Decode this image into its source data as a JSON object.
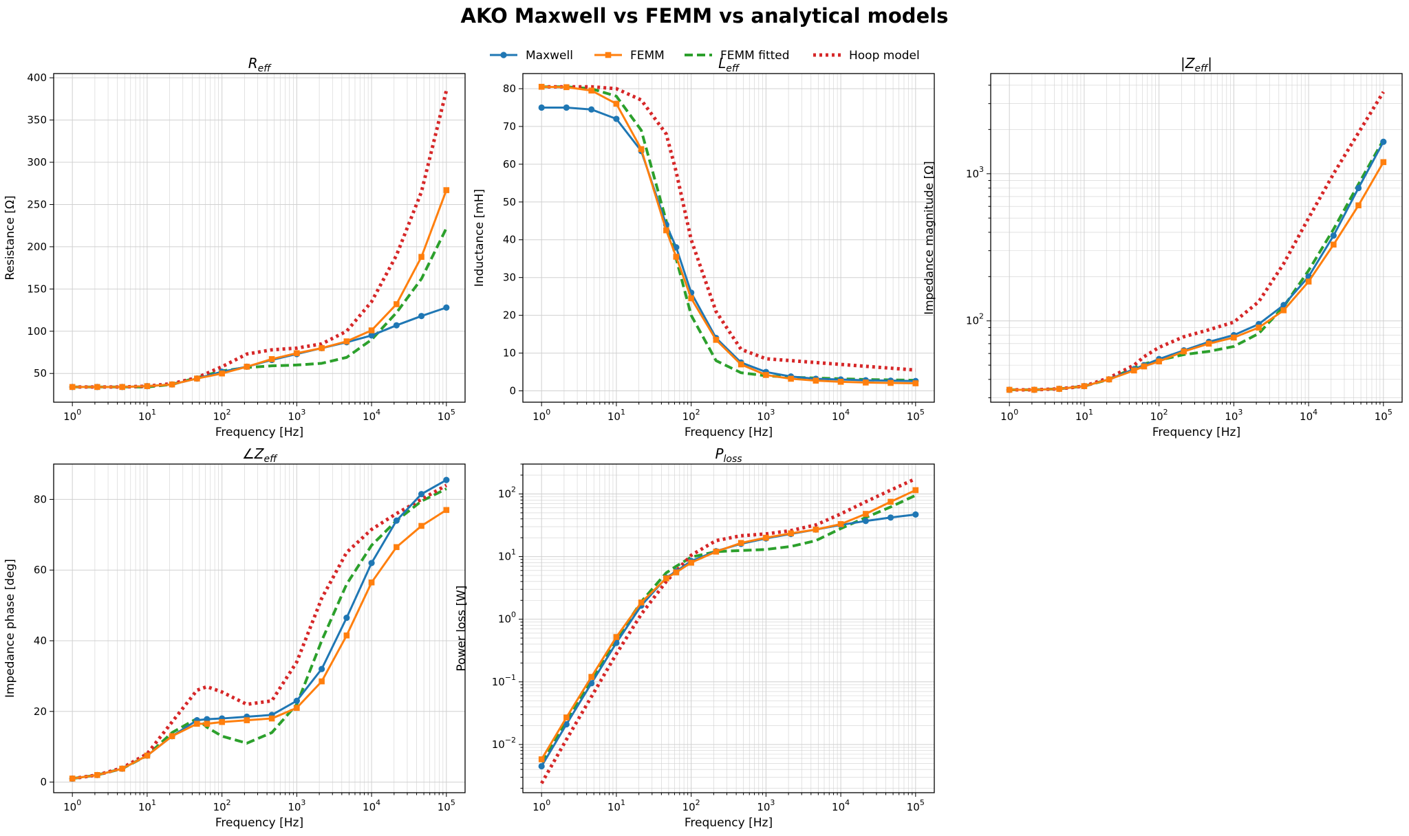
{
  "figure": {
    "title": "AKO Maxwell vs FEMM vs analytical models"
  },
  "colors": {
    "maxwell": "#1f77b4",
    "femm": "#ff7f0e",
    "femm_fitted": "#2ca02c",
    "hoop": "#d62728"
  },
  "legend": {
    "placement": "top-center",
    "entries": [
      {
        "label": "Maxwell",
        "series": "maxwell",
        "style": "solid-circle"
      },
      {
        "label": "FEMM",
        "series": "femm",
        "style": "solid-square"
      },
      {
        "label": "FEMM fitted",
        "series": "femm_fitted",
        "style": "dashed"
      },
      {
        "label": "Hoop model",
        "series": "hoop",
        "style": "dotted"
      }
    ]
  },
  "chart_data": [
    {
      "id": "r",
      "type": "line",
      "title": "R_eff",
      "title_main": "R",
      "title_sub": "eff",
      "xlabel": "Frequency [Hz]",
      "ylabel": "Resistance [Ω]",
      "xscale": "log",
      "yscale": "linear",
      "xlim": [
        1,
        100000
      ],
      "ylim": [
        16,
        405
      ],
      "yticks": [
        50,
        100,
        150,
        200,
        250,
        300,
        350,
        400
      ],
      "ytick_labels": [
        "50",
        "100",
        "150",
        "200",
        "250",
        "300",
        "350",
        "400"
      ],
      "grid": true,
      "series": [
        {
          "name": "Maxwell",
          "key": "maxwell",
          "x": [
            1,
            2.15,
            4.64,
            10,
            21.5,
            46.4,
            100,
            215,
            464,
            1000,
            2154,
            4642,
            10000,
            21544,
            46416,
            100000
          ],
          "y": [
            34,
            34,
            34,
            35,
            37,
            44,
            52,
            58,
            66,
            73,
            80,
            87,
            95,
            107,
            118,
            128
          ]
        },
        {
          "name": "FEMM",
          "key": "femm",
          "x": [
            1,
            2.15,
            4.64,
            10,
            21.5,
            46.4,
            100,
            215,
            464,
            1000,
            2154,
            4642,
            10000,
            21544,
            46416,
            100000
          ],
          "y": [
            34,
            34,
            34,
            35,
            37,
            44,
            50,
            58,
            67,
            74,
            80,
            88,
            101,
            132,
            188,
            267
          ]
        },
        {
          "name": "FEMM fitted",
          "key": "femm_fitted",
          "x": [
            1,
            2.15,
            4.64,
            10,
            21.5,
            46.4,
            100,
            215,
            464,
            1000,
            2154,
            4642,
            10000,
            21544,
            46416,
            100000
          ],
          "y": [
            34,
            34,
            34,
            34,
            37,
            45,
            53,
            57,
            59,
            60,
            62,
            69,
            90,
            122,
            162,
            222
          ]
        },
        {
          "name": "Hoop model",
          "key": "hoop",
          "x": [
            1,
            2.15,
            4.64,
            10,
            21.5,
            46.4,
            100,
            215,
            464,
            1000,
            2154,
            4642,
            10000,
            21544,
            46416,
            100000
          ],
          "y": [
            34,
            34,
            34,
            35,
            38,
            45,
            58,
            73,
            78,
            80,
            85,
            100,
            135,
            190,
            265,
            385
          ]
        }
      ]
    },
    {
      "id": "l",
      "type": "line",
      "title": "L_eff",
      "title_main": "L",
      "title_sub": "eff",
      "xlabel": "Frequency [Hz]",
      "ylabel": "Inductance [mH]",
      "xscale": "log",
      "yscale": "linear",
      "xlim": [
        1,
        100000
      ],
      "ylim": [
        -3,
        84
      ],
      "yticks": [
        0,
        10,
        20,
        30,
        40,
        50,
        60,
        70,
        80
      ],
      "ytick_labels": [
        "0",
        "10",
        "20",
        "30",
        "40",
        "50",
        "60",
        "70",
        "80"
      ],
      "grid": true,
      "series": [
        {
          "name": "Maxwell",
          "key": "maxwell",
          "x": [
            1,
            2.15,
            4.64,
            10,
            21.5,
            46.4,
            63,
            100,
            215,
            464,
            1000,
            2154,
            4642,
            10000,
            21544,
            46416,
            100000
          ],
          "y": [
            75,
            75,
            74.5,
            72,
            63.5,
            44,
            38,
            26,
            14,
            7.5,
            5,
            3.8,
            3.2,
            3,
            2.8,
            2.7,
            2.6
          ]
        },
        {
          "name": "FEMM",
          "key": "femm",
          "x": [
            1,
            2.15,
            4.64,
            10,
            21.5,
            46.4,
            63,
            100,
            215,
            464,
            1000,
            2154,
            4642,
            10000,
            21544,
            46416,
            100000
          ],
          "y": [
            80.5,
            80.4,
            79.5,
            76,
            64,
            42.5,
            35.5,
            24.5,
            13.5,
            7,
            4.2,
            3.2,
            2.7,
            2.4,
            2.2,
            2.1,
            2.0
          ]
        },
        {
          "name": "FEMM fitted",
          "key": "femm_fitted",
          "x": [
            1,
            2.15,
            4.64,
            10,
            21.5,
            46.4,
            63,
            100,
            215,
            464,
            1000,
            2154,
            4642,
            10000,
            21544,
            46416,
            100000
          ],
          "y": [
            80.5,
            80.5,
            80,
            78,
            69,
            45,
            35,
            20,
            8,
            4.8,
            4,
            3.6,
            3.4,
            3.2,
            3,
            2.9,
            2.8
          ]
        },
        {
          "name": "Hoop model",
          "key": "hoop",
          "x": [
            1,
            2.15,
            4.64,
            10,
            21.5,
            46.4,
            63,
            100,
            215,
            464,
            1000,
            2154,
            4642,
            10000,
            21544,
            46416,
            100000
          ],
          "y": [
            80.5,
            80.5,
            80.5,
            80,
            77,
            68,
            58,
            40,
            21,
            11,
            8.5,
            8,
            7.5,
            7,
            6.5,
            6,
            5.5
          ]
        }
      ]
    },
    {
      "id": "z",
      "type": "line",
      "title": "|Z_eff|",
      "title_main": "|Z",
      "title_sub": "eff",
      "title_after": "|",
      "xlabel": "Frequency [Hz]",
      "ylabel": "Impedance magnitude [Ω]",
      "xscale": "log",
      "yscale": "log",
      "xlim": [
        1,
        100000
      ],
      "ylim": [
        28,
        4800
      ],
      "yticks": [
        100,
        1000
      ],
      "ytick_labels": [
        "10^2",
        "10^3"
      ],
      "grid": true,
      "series": [
        {
          "name": "Maxwell",
          "key": "maxwell",
          "x": [
            1,
            2.15,
            4.64,
            10,
            21.5,
            46.4,
            63,
            100,
            215,
            464,
            1000,
            2154,
            4642,
            10000,
            21544,
            46416,
            100000
          ],
          "y": [
            34,
            34,
            34.5,
            36,
            40,
            47,
            50,
            55,
            63,
            72,
            80,
            95,
            128,
            200,
            380,
            800,
            1650
          ]
        },
        {
          "name": "FEMM",
          "key": "femm",
          "x": [
            1,
            2.15,
            4.64,
            10,
            21.5,
            46.4,
            63,
            100,
            215,
            464,
            1000,
            2154,
            4642,
            10000,
            21544,
            46416,
            100000
          ],
          "y": [
            34,
            34,
            34.5,
            36,
            40,
            46,
            49,
            53,
            62,
            70,
            77,
            90,
            118,
            185,
            330,
            610,
            1200
          ]
        },
        {
          "name": "FEMM fitted",
          "key": "femm_fitted",
          "x": [
            1,
            2.15,
            4.64,
            10,
            21.5,
            46.4,
            63,
            100,
            215,
            464,
            1000,
            2154,
            4642,
            10000,
            21544,
            46416,
            100000
          ],
          "y": [
            34,
            34,
            34.5,
            36,
            40,
            48,
            51,
            54,
            59,
            62,
            67,
            82,
            125,
            220,
            420,
            850,
            1700
          ]
        },
        {
          "name": "Hoop model",
          "key": "hoop",
          "x": [
            1,
            2.15,
            4.64,
            10,
            21.5,
            46.4,
            63,
            100,
            215,
            464,
            1000,
            2154,
            4642,
            10000,
            21544,
            46416,
            100000
          ],
          "y": [
            34,
            34,
            34.5,
            36,
            41,
            50,
            57,
            66,
            78,
            87,
            98,
            135,
            245,
            500,
            1000,
            1900,
            3600
          ]
        }
      ]
    },
    {
      "id": "phase",
      "type": "line",
      "title": "∠Z_eff",
      "title_main": "∠Z",
      "title_sub": "eff",
      "xlabel": "Frequency [Hz]",
      "ylabel": "Impedance phase [deg]",
      "xscale": "log",
      "yscale": "linear",
      "xlim": [
        1,
        100000
      ],
      "ylim": [
        -3,
        90
      ],
      "yticks": [
        0,
        20,
        40,
        60,
        80
      ],
      "ytick_labels": [
        "0",
        "20",
        "40",
        "60",
        "80"
      ],
      "grid": true,
      "series": [
        {
          "name": "Maxwell",
          "key": "maxwell",
          "x": [
            1,
            2.15,
            4.64,
            10,
            21.5,
            46.4,
            63,
            100,
            215,
            464,
            1000,
            2154,
            4642,
            10000,
            21544,
            46416,
            100000
          ],
          "y": [
            1,
            2,
            3.8,
            7.5,
            13,
            17.5,
            17.8,
            18,
            18.5,
            19,
            23,
            32,
            46.5,
            62,
            74,
            81.5,
            85.5
          ]
        },
        {
          "name": "FEMM",
          "key": "femm",
          "x": [
            1,
            2.15,
            4.64,
            10,
            21.5,
            46.4,
            63,
            100,
            215,
            464,
            1000,
            2154,
            4642,
            10000,
            21544,
            46416,
            100000
          ],
          "y": [
            1,
            2,
            3.8,
            7.5,
            13,
            16.5,
            16.5,
            17,
            17.5,
            18,
            21,
            28.5,
            41.5,
            56.5,
            66.5,
            72.5,
            77
          ]
        },
        {
          "name": "FEMM fitted",
          "key": "femm_fitted",
          "x": [
            1,
            2.15,
            4.64,
            10,
            21.5,
            46.4,
            63,
            100,
            215,
            464,
            1000,
            2154,
            4642,
            10000,
            21544,
            46416,
            100000
          ],
          "y": [
            1,
            2,
            3.8,
            7.5,
            14,
            18,
            15.5,
            13,
            11,
            14,
            22,
            40,
            56,
            67,
            74,
            79.5,
            83
          ]
        },
        {
          "name": "Hoop model",
          "key": "hoop",
          "x": [
            1,
            2.15,
            4.64,
            10,
            21.5,
            46.4,
            63,
            100,
            215,
            464,
            1000,
            2154,
            4642,
            10000,
            21544,
            46416,
            100000
          ],
          "y": [
            1,
            2,
            4,
            8,
            17,
            26,
            27,
            25.5,
            22,
            23,
            34,
            52,
            65,
            71.5,
            76,
            80,
            84
          ]
        }
      ]
    },
    {
      "id": "ploss",
      "type": "line",
      "title": "P_loss",
      "title_main": "P",
      "title_sub": "loss",
      "xlabel": "Frequency [Hz]",
      "ylabel": "Power loss [W]",
      "xscale": "log",
      "yscale": "log",
      "xlim": [
        1,
        100000
      ],
      "ylim": [
        0.0017,
        300
      ],
      "yticks": [
        0.01,
        0.1,
        1,
        10,
        100
      ],
      "ytick_labels": [
        "10^-2",
        "10^-1",
        "10^0",
        "10^1",
        "10^2"
      ],
      "grid": true,
      "series": [
        {
          "name": "Maxwell",
          "key": "maxwell",
          "x": [
            1,
            2.15,
            4.64,
            10,
            21.5,
            46.4,
            63,
            100,
            215,
            464,
            1000,
            2154,
            4642,
            10000,
            21544,
            46416,
            100000
          ],
          "y": [
            0.0045,
            0.021,
            0.095,
            0.42,
            1.65,
            4.6,
            5.8,
            8.5,
            12.2,
            16,
            19.5,
            23,
            27,
            32,
            37,
            42,
            47
          ]
        },
        {
          "name": "FEMM",
          "key": "femm",
          "x": [
            1,
            2.15,
            4.64,
            10,
            21.5,
            46.4,
            63,
            100,
            215,
            464,
            1000,
            2154,
            4642,
            10000,
            21544,
            46416,
            100000
          ],
          "y": [
            0.0058,
            0.027,
            0.12,
            0.52,
            1.85,
            4.5,
            5.6,
            8,
            12,
            16.5,
            20,
            23.5,
            27,
            33,
            48,
            75,
            115
          ]
        },
        {
          "name": "FEMM fitted",
          "key": "femm_fitted",
          "x": [
            1,
            2.15,
            4.64,
            10,
            21.5,
            46.4,
            63,
            100,
            215,
            464,
            1000,
            2154,
            4642,
            10000,
            21544,
            46416,
            100000
          ],
          "y": [
            0.0052,
            0.024,
            0.11,
            0.48,
            1.9,
            5.5,
            7,
            9.8,
            12,
            12.5,
            13,
            14.5,
            18,
            28,
            42,
            62,
            95
          ]
        },
        {
          "name": "Hoop model",
          "key": "hoop",
          "x": [
            1,
            2.15,
            4.64,
            10,
            21.5,
            46.4,
            63,
            100,
            215,
            464,
            1000,
            2154,
            4642,
            10000,
            21544,
            46416,
            100000
          ],
          "y": [
            0.0024,
            0.012,
            0.058,
            0.28,
            1.2,
            4,
            5.9,
            10.5,
            18,
            21.5,
            23,
            26,
            32,
            48,
            75,
            115,
            175
          ]
        }
      ]
    }
  ]
}
